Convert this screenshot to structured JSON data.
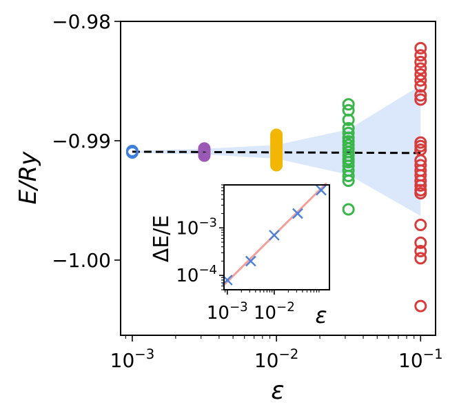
{
  "chart_data": [
    {
      "type": "scatter",
      "xlabel": "ε",
      "ylabel": "E/Ry",
      "x_scale": "log",
      "xlim": [
        0.00083,
        0.127
      ],
      "ylim": [
        -1.0063,
        -0.98
      ],
      "x_ticks": [
        {
          "value": 0.001,
          "base": "10",
          "exp": "−3"
        },
        {
          "value": 0.01,
          "base": "10",
          "exp": "−2"
        },
        {
          "value": 0.1,
          "base": "10",
          "exp": "−1"
        }
      ],
      "y_ticks": [
        {
          "value": -0.98,
          "label": "−0.98"
        },
        {
          "value": -0.99,
          "label": "−0.99"
        },
        {
          "value": -1.0,
          "label": "−1.00"
        }
      ],
      "fit_line": {
        "x": [
          0.001,
          0.1
        ],
        "y": [
          -0.99092,
          -0.99103
        ],
        "color": "#000000",
        "style": "dashed"
      },
      "uncertainty_band": {
        "color": "#dbe7fb",
        "x": [
          0.001,
          0.00316,
          0.01,
          0.0316,
          0.1
        ],
        "upper": [
          -0.99085,
          -0.99068,
          -0.99035,
          -0.98905,
          -0.98535
        ],
        "lower": [
          -0.991,
          -0.99115,
          -0.9915,
          -0.99285,
          -0.9963
        ]
      },
      "series": [
        {
          "color": "#3f7fe0",
          "x": 0.001,
          "values": [
            -0.99098,
            -0.99094,
            -0.9909,
            -0.99086
          ]
        },
        {
          "color": "#9b59b6",
          "x": 0.00316,
          "values": [
            -0.99125,
            -0.99115,
            -0.99105,
            -0.99095,
            -0.99085,
            -0.99075,
            -0.99065
          ]
        },
        {
          "color": "#f2b705",
          "x": 0.01,
          "values": [
            -0.99205,
            -0.9919,
            -0.99175,
            -0.9916,
            -0.99145,
            -0.9913,
            -0.99115,
            -0.991,
            -0.99085,
            -0.9907,
            -0.99055,
            -0.9904,
            -0.99025,
            -0.9901,
            -0.98995,
            -0.9898,
            -0.98965,
            -0.9895
          ]
        },
        {
          "color": "#3ab54a",
          "x": 0.0316,
          "values": [
            -0.98695,
            -0.98745,
            -0.98825,
            -0.98895,
            -0.98935,
            -0.98975,
            -0.99005,
            -0.99035,
            -0.99065,
            -0.99095,
            -0.99125,
            -0.99155,
            -0.9918,
            -0.9921,
            -0.9925,
            -0.99295,
            -0.99335,
            -0.99575
          ]
        },
        {
          "color": "#d93b3b",
          "x": 0.1,
          "values": [
            -0.98225,
            -0.98285,
            -0.9834,
            -0.98395,
            -0.98445,
            -0.98495,
            -0.98545,
            -0.9862,
            -0.98655,
            -0.99015,
            -0.99045,
            -0.99075,
            -0.99165,
            -0.99205,
            -0.9925,
            -0.9929,
            -0.99335,
            -0.99375,
            -0.99415,
            -0.9944,
            -0.99705,
            -0.99855,
            -0.99925,
            -0.99985,
            -1.00385
          ]
        }
      ]
    },
    {
      "type": "line",
      "xlabel": "ε",
      "ylabel": "ΔE/E",
      "x_scale": "log",
      "y_scale": "log",
      "xlim": [
        0.00085,
        0.15
      ],
      "ylim": [
        5e-05,
        0.008
      ],
      "x_ticks": [
        {
          "value": 0.001,
          "base": "10",
          "exp": "−3"
        },
        {
          "value": 0.01,
          "base": "10",
          "exp": "−2"
        }
      ],
      "y_ticks": [
        {
          "value": 0.0001,
          "base": "10",
          "exp": "−4"
        },
        {
          "value": 0.001,
          "base": "10",
          "exp": "−3"
        }
      ],
      "points": {
        "color": "#4a7fdc",
        "x": [
          0.001,
          0.00316,
          0.01,
          0.0316,
          0.1
        ],
        "y": [
          8e-05,
          0.0002,
          0.0007,
          0.002,
          0.0062
        ]
      },
      "fit_line": {
        "color": "#f2a09a",
        "x": [
          0.00085,
          0.13
        ],
        "y": [
          6.3e-05,
          0.0087
        ]
      }
    }
  ]
}
